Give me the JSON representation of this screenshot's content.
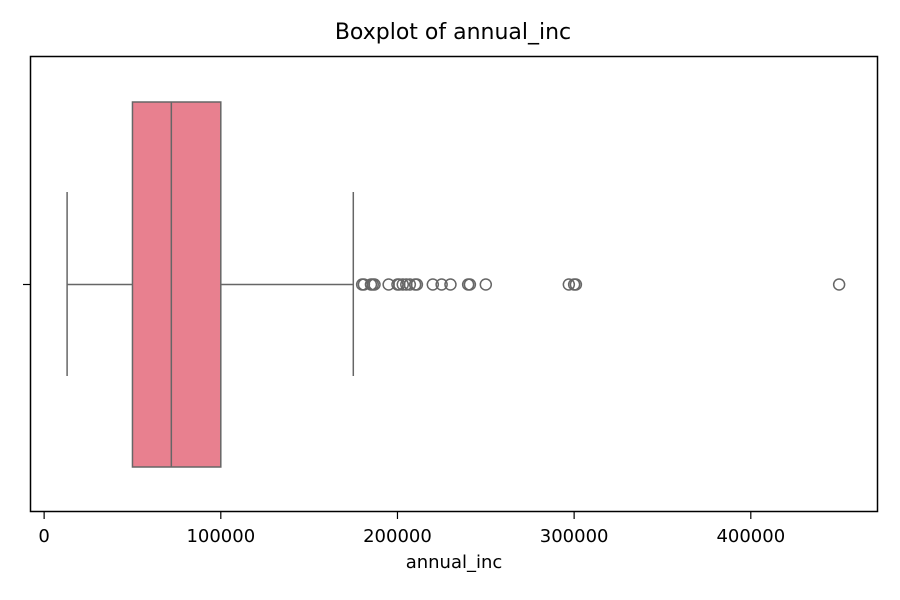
{
  "chart_data": {
    "type": "boxplot",
    "title": "Boxplot of annual_inc",
    "xlabel": "annual_inc",
    "ylabel": "",
    "orientation": "horizontal",
    "xlim": [
      -8000,
      472000
    ],
    "xticks": [
      0,
      100000,
      200000,
      300000,
      400000
    ],
    "xtick_labels": [
      "0",
      "100000",
      "200000",
      "300000",
      "400000"
    ],
    "box": {
      "whisker_low": 13000,
      "q1": 50000,
      "median": 72000,
      "q3": 100000,
      "whisker_high": 175000,
      "color": "#e8808f",
      "line_color": "#666666"
    },
    "outliers": [
      180000,
      181000,
      185000,
      186000,
      187000,
      195000,
      200000,
      201000,
      203000,
      205000,
      207000,
      210000,
      211000,
      220000,
      225000,
      230000,
      240000,
      241000,
      250000,
      297000,
      300000,
      301000,
      450000
    ],
    "grid": false
  }
}
